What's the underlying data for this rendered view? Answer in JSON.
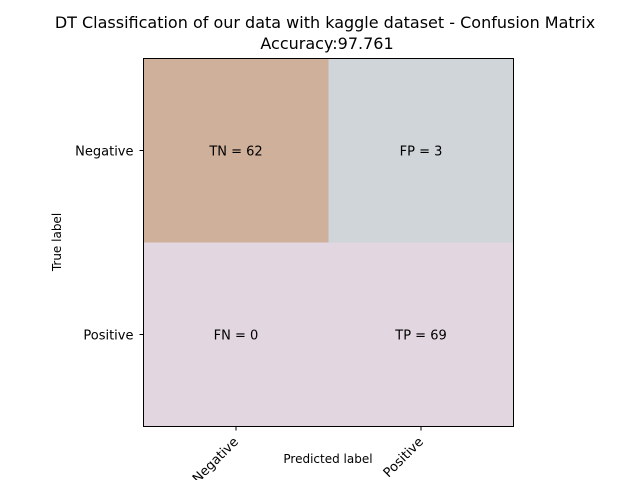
{
  "chart_data": {
    "type": "heatmap",
    "title": "DT Classification of our data with kaggle dataset - Confusion Matrix",
    "subtitle": "Accuracy:97.761",
    "xlabel": "Predicted label",
    "ylabel": "True label",
    "x_categories": [
      "Negative",
      "Positive"
    ],
    "y_categories": [
      "Negative",
      "Positive"
    ],
    "cells": [
      {
        "row": 0,
        "col": 0,
        "label": "TN = 62",
        "value": 62,
        "color": "#cfb09a"
      },
      {
        "row": 0,
        "col": 1,
        "label": "FP = 3",
        "value": 3,
        "color": "#cfd5d9"
      },
      {
        "row": 1,
        "col": 0,
        "label": "FN = 0",
        "value": 0,
        "color": "#e2d7e1"
      },
      {
        "row": 1,
        "col": 1,
        "label": "TP = 69",
        "value": 69,
        "color": "#e2d7e1"
      }
    ]
  }
}
